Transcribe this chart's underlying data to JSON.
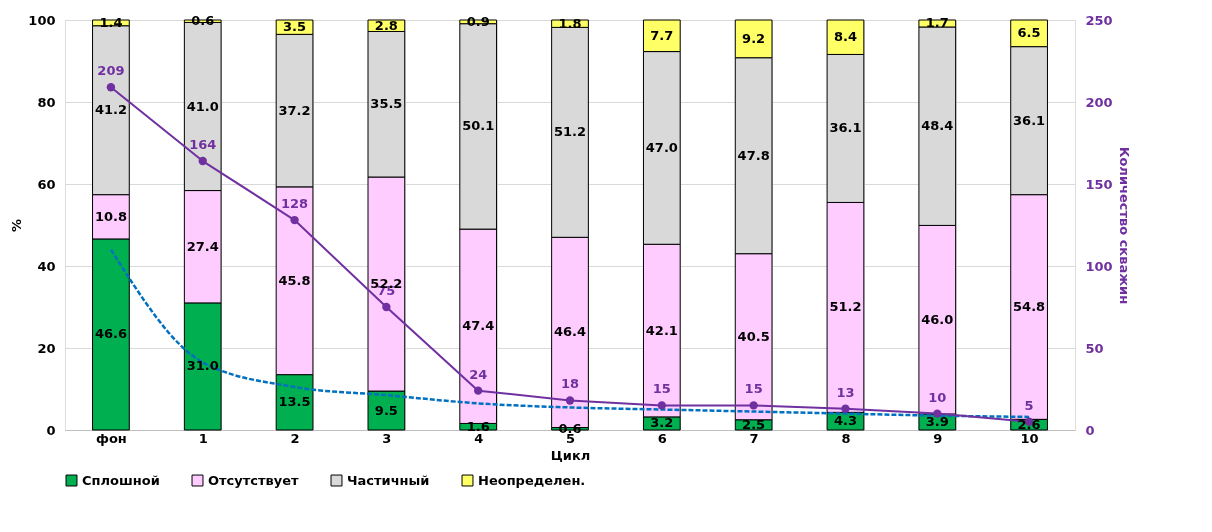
{
  "chart_data": {
    "type": "bar",
    "stacked": true,
    "xlabel": "Цикл",
    "ylabel": "%",
    "y2label": "Количество скважин",
    "categories": [
      "фон",
      "1",
      "2",
      "3",
      "4",
      "5",
      "6",
      "7",
      "8",
      "9",
      "10"
    ],
    "series": [
      {
        "name": "Сплошной",
        "color": "#00b050",
        "values": [
          46.6,
          31.0,
          13.5,
          9.5,
          1.6,
          0.6,
          3.2,
          2.5,
          4.3,
          3.9,
          2.6
        ],
        "value_labels": [
          "46.6",
          "31.0",
          "13.5",
          "9.5",
          "1.6",
          "0.6",
          "3.2",
          "2.5",
          "4.3",
          "3.9",
          "2.6"
        ]
      },
      {
        "name": "Отсутствует",
        "color": "#ffccff",
        "values": [
          10.8,
          27.4,
          45.8,
          52.2,
          47.4,
          46.4,
          42.1,
          40.5,
          51.2,
          46.0,
          54.8
        ],
        "value_labels": [
          "10.8",
          "27.4",
          "45.8",
          "52.2",
          "47.4",
          "46.4",
          "42.1",
          "40.5",
          "51.2",
          "46.0",
          "54.8"
        ]
      },
      {
        "name": "Частичный",
        "color": "#d9d9d9",
        "values": [
          41.2,
          41.0,
          37.2,
          35.5,
          50.1,
          51.2,
          47.0,
          47.8,
          36.1,
          48.4,
          36.1
        ],
        "value_labels": [
          "41.2",
          "41.0",
          "37.2",
          "35.5",
          "50.1",
          "51.2",
          "47.0",
          "47.8",
          "36.1",
          "48.4",
          "36.1"
        ]
      },
      {
        "name": "Неопределен.",
        "color": "#ffff66",
        "values": [
          1.4,
          0.6,
          3.5,
          2.8,
          0.9,
          1.8,
          7.7,
          9.2,
          8.4,
          1.7,
          6.5
        ]
      },
      {
        "type": "line",
        "axis": "y2",
        "color": "#7030a0",
        "marker": "circle",
        "values": [
          209,
          164,
          128,
          75,
          24,
          18,
          15,
          15,
          13,
          10,
          5
        ]
      },
      {
        "type": "line",
        "color": "#0070c0",
        "line_style": "dashed",
        "marker": "none",
        "data_labels": false,
        "values": [
          44,
          16.5,
          10.5,
          8.5,
          6.5,
          5.5,
          5,
          4.5,
          4,
          3.5,
          3.2
        ]
      }
    ],
    "ylim": [
      0,
      100
    ],
    "yticks": [
      0,
      20,
      40,
      60,
      80,
      100
    ],
    "y2lim": [
      0,
      250
    ],
    "y2ticks": [
      0,
      50,
      100,
      150,
      200,
      250
    ],
    "grid": true,
    "legend": "bottom",
    "data_labels": true
  }
}
